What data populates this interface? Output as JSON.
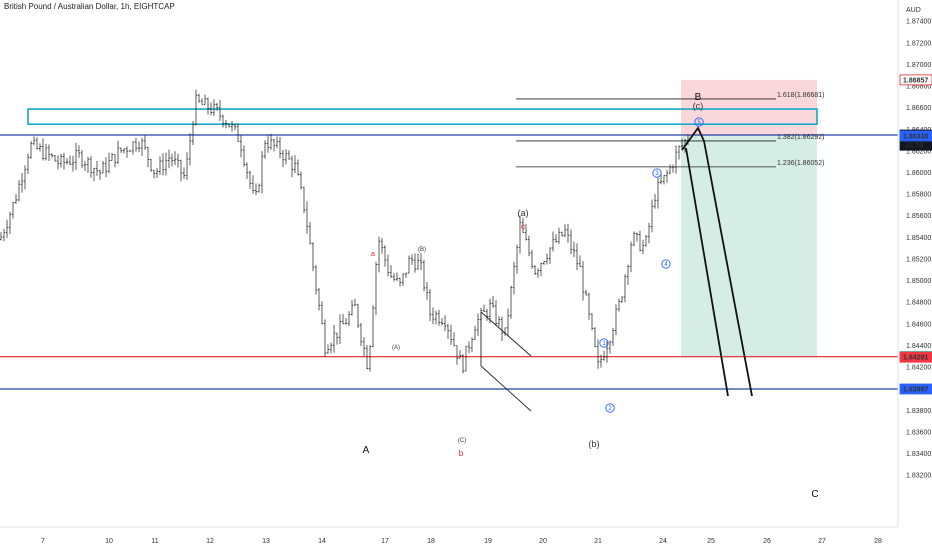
{
  "header": {
    "title": "British Pound / Australian Dollar, 1h, EIGHTCAP"
  },
  "chart_data": {
    "type": "candlestick",
    "currency_label": "AUD",
    "ylim": [
      1.8272,
      1.8755
    ],
    "y_ticks": [
      "1.87400",
      "1.87200",
      "1.87000",
      "1.86800",
      "1.86600",
      "1.86400",
      "1.86200",
      "1.86000",
      "1.85800",
      "1.85600",
      "1.85400",
      "1.85200",
      "1.85000",
      "1.84800",
      "1.84600",
      "1.84400",
      "1.84200",
      "1.84000",
      "1.83800",
      "1.83600",
      "1.83400",
      "1.83200"
    ],
    "x_ticks": [
      "7",
      "10",
      "11",
      "12",
      "13",
      "14",
      "17",
      "18",
      "19",
      "20",
      "21",
      "24",
      "25",
      "26",
      "27",
      "28"
    ],
    "price_tags": [
      {
        "text": "1.86857",
        "value": 1.86857,
        "bg": "#ffffff",
        "fg": "#e0222c",
        "border": "#e0222c"
      },
      {
        "text": "1.86347",
        "value": 1.86347,
        "bg": "#131722",
        "fg": "#ffffff",
        "border": "#131722"
      },
      {
        "text": "1.86345",
        "value": 1.86345,
        "bg": "#131722",
        "fg": "#ffffff",
        "border": "#131722",
        "sub": "21:53"
      },
      {
        "text": "1.86338",
        "value": 1.86338,
        "bg": "#2962ff",
        "fg": "#ffffff",
        "border": "#2962ff"
      },
      {
        "text": "1.84296",
        "value": 1.84296,
        "bg": "#089981",
        "fg": "#ffffff",
        "border": "#089981"
      },
      {
        "text": "1.84291",
        "value": 1.84291,
        "bg": "#f23645",
        "fg": "#ffffff",
        "border": "#f23645"
      },
      {
        "text": "1.83997",
        "value": 1.83997,
        "bg": "#2962ff",
        "fg": "#ffffff",
        "border": "#2962ff"
      }
    ],
    "horizontal_lines": [
      {
        "value": 1.86347,
        "color": "#2340a8"
      },
      {
        "value": 1.84296,
        "color": "#e0222c"
      },
      {
        "value": 1.83997,
        "color": "#2340a8"
      }
    ],
    "fib_levels": [
      {
        "label": "1.618(1.86681)",
        "value": 1.86681
      },
      {
        "label": "1.382(1.86292)",
        "value": 1.86292
      },
      {
        "label": "1.236(1.86052)",
        "value": 1.86052
      }
    ],
    "resistance_zone": {
      "low": 1.86447,
      "high": 1.86587,
      "color": "#14a8c8"
    },
    "position": {
      "entry": 1.86347,
      "stop": 1.86857,
      "target": 1.84296
    },
    "wave_labels": [
      {
        "text": "B",
        "color": "#111111"
      },
      {
        "text": "(c)",
        "color": "#333333"
      },
      {
        "text": "a",
        "color": "#e0222c"
      },
      {
        "text": "(B)",
        "color": "#333333"
      },
      {
        "text": "(A)",
        "color": "#333333"
      },
      {
        "text": "A",
        "color": "#111111"
      },
      {
        "text": "(C)",
        "color": "#333333"
      },
      {
        "text": "b",
        "color": "#e0222c"
      },
      {
        "text": "(a)",
        "color": "#333333"
      },
      {
        "text": "c",
        "color": "#e0222c"
      },
      {
        "text": "(b)",
        "color": "#333333"
      },
      {
        "text": "C",
        "color": "#111111"
      },
      {
        "text": "1",
        "color": "#2962ff"
      },
      {
        "text": "2",
        "color": "#2962ff"
      },
      {
        "text": "3",
        "color": "#2962ff"
      },
      {
        "text": "4",
        "color": "#2962ff"
      },
      {
        "text": "5",
        "color": "#2962ff"
      }
    ],
    "price_path": [
      [
        0,
        1.8538
      ],
      [
        15,
        1.8575
      ],
      [
        30,
        1.8625
      ],
      [
        45,
        1.8618
      ],
      [
        60,
        1.8608
      ],
      [
        80,
        1.8615
      ],
      [
        100,
        1.86
      ],
      [
        120,
        1.862
      ],
      [
        140,
        1.863
      ],
      [
        155,
        1.86
      ],
      [
        170,
        1.8615
      ],
      [
        185,
        1.8595
      ],
      [
        195,
        1.8665
      ],
      [
        210,
        1.866
      ],
      [
        225,
        1.865
      ],
      [
        240,
        1.863
      ],
      [
        255,
        1.857
      ],
      [
        265,
        1.863
      ],
      [
        280,
        1.862
      ],
      [
        295,
        1.8605
      ],
      [
        305,
        1.8565
      ],
      [
        315,
        1.85
      ],
      [
        325,
        1.844
      ],
      [
        340,
        1.8455
      ],
      [
        355,
        1.8475
      ],
      [
        368,
        1.842
      ],
      [
        378,
        1.854
      ],
      [
        390,
        1.8505
      ],
      [
        400,
        1.8495
      ],
      [
        410,
        1.852
      ],
      [
        420,
        1.8515
      ],
      [
        430,
        1.847
      ],
      [
        445,
        1.8465
      ],
      [
        462,
        1.842
      ],
      [
        475,
        1.846
      ],
      [
        490,
        1.8475
      ],
      [
        505,
        1.845
      ],
      [
        520,
        1.855
      ],
      [
        535,
        1.851
      ],
      [
        550,
        1.853
      ],
      [
        565,
        1.8545
      ],
      [
        580,
        1.851
      ],
      [
        590,
        1.846
      ],
      [
        598,
        1.842
      ],
      [
        610,
        1.845
      ],
      [
        620,
        1.848
      ],
      [
        632,
        1.854
      ],
      [
        645,
        1.853
      ],
      [
        655,
        1.858
      ],
      [
        668,
        1.86
      ],
      [
        678,
        1.862
      ],
      [
        690,
        1.8635
      ]
    ]
  }
}
